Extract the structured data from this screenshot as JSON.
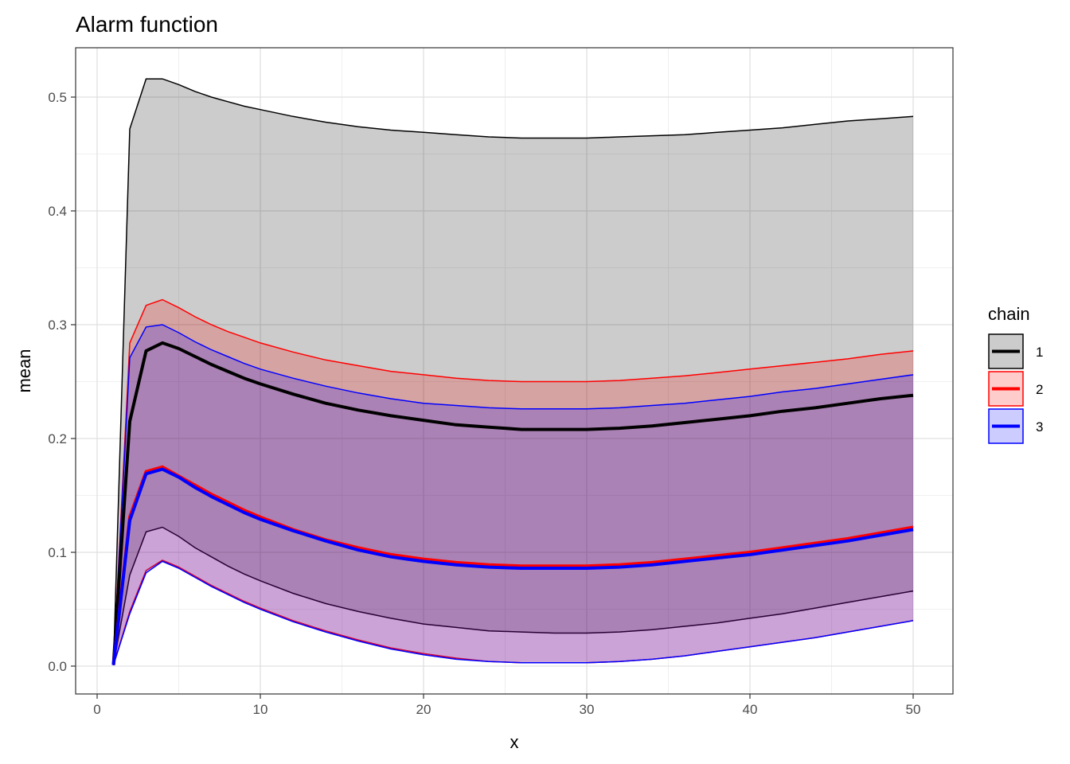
{
  "chart_data": {
    "type": "area",
    "title": "Alarm function",
    "xlabel": "x",
    "ylabel": "mean",
    "xlim": [
      0,
      50
    ],
    "ylim": [
      0,
      0.5
    ],
    "x_ticks": [
      0,
      10,
      20,
      30,
      40,
      50
    ],
    "y_ticks": [
      0.0,
      0.1,
      0.2,
      0.3,
      0.4,
      0.5
    ],
    "x_tick_labels": [
      "0",
      "10",
      "20",
      "30",
      "40",
      "50"
    ],
    "y_tick_labels": [
      "0.0",
      "0.1",
      "0.2",
      "0.3",
      "0.4",
      "0.5"
    ],
    "grid": true,
    "legend": {
      "title": "chain",
      "position": "right"
    },
    "x": [
      1,
      2,
      3,
      4,
      5,
      6,
      7,
      8,
      9,
      10,
      12,
      14,
      16,
      18,
      20,
      22,
      24,
      26,
      28,
      30,
      32,
      34,
      36,
      38,
      40,
      42,
      44,
      46,
      48,
      50
    ],
    "series": [
      {
        "name": "1",
        "color": "#000000",
        "fill": "#000000",
        "fill_opacity": 0.2,
        "mean": [
          0.001,
          0.215,
          0.277,
          0.284,
          0.279,
          0.272,
          0.265,
          0.259,
          0.253,
          0.248,
          0.239,
          0.231,
          0.225,
          0.22,
          0.216,
          0.212,
          0.21,
          0.208,
          0.208,
          0.208,
          0.209,
          0.211,
          0.214,
          0.217,
          0.22,
          0.224,
          0.227,
          0.231,
          0.235,
          0.238
        ],
        "lower": [
          0.001,
          0.08,
          0.118,
          0.122,
          0.114,
          0.104,
          0.096,
          0.088,
          0.081,
          0.075,
          0.064,
          0.055,
          0.048,
          0.042,
          0.037,
          0.034,
          0.031,
          0.03,
          0.029,
          0.029,
          0.03,
          0.032,
          0.035,
          0.038,
          0.042,
          0.046,
          0.051,
          0.056,
          0.061,
          0.066
        ],
        "upper": [
          0.001,
          0.472,
          0.516,
          0.516,
          0.511,
          0.505,
          0.5,
          0.496,
          0.492,
          0.489,
          0.483,
          0.478,
          0.474,
          0.471,
          0.469,
          0.467,
          0.465,
          0.464,
          0.464,
          0.464,
          0.465,
          0.466,
          0.467,
          0.469,
          0.471,
          0.473,
          0.476,
          0.479,
          0.481,
          0.483
        ]
      },
      {
        "name": "2",
        "color": "#ff0000",
        "fill": "#ff0000",
        "fill_opacity": 0.2,
        "mean": [
          0.001,
          0.131,
          0.171,
          0.175,
          0.167,
          0.159,
          0.151,
          0.144,
          0.137,
          0.131,
          0.12,
          0.111,
          0.104,
          0.098,
          0.094,
          0.091,
          0.089,
          0.088,
          0.088,
          0.088,
          0.089,
          0.091,
          0.094,
          0.097,
          0.1,
          0.104,
          0.108,
          0.112,
          0.117,
          0.122
        ],
        "lower": [
          0.001,
          0.048,
          0.084,
          0.093,
          0.087,
          0.079,
          0.071,
          0.064,
          0.057,
          0.051,
          0.04,
          0.031,
          0.023,
          0.016,
          0.011,
          0.007,
          0.004,
          0.003,
          0.003,
          0.003,
          0.004,
          0.006,
          0.009,
          0.013,
          0.017,
          0.021,
          0.025,
          0.03,
          0.035,
          0.04
        ],
        "upper": [
          0.001,
          0.284,
          0.317,
          0.322,
          0.315,
          0.307,
          0.3,
          0.294,
          0.289,
          0.284,
          0.276,
          0.269,
          0.264,
          0.259,
          0.256,
          0.253,
          0.251,
          0.25,
          0.25,
          0.25,
          0.251,
          0.253,
          0.255,
          0.258,
          0.261,
          0.264,
          0.267,
          0.27,
          0.274,
          0.277
        ]
      },
      {
        "name": "3",
        "color": "#0000ff",
        "fill": "#0000ff",
        "fill_opacity": 0.2,
        "mean": [
          0.001,
          0.128,
          0.169,
          0.173,
          0.166,
          0.157,
          0.149,
          0.142,
          0.135,
          0.129,
          0.119,
          0.11,
          0.102,
          0.096,
          0.092,
          0.089,
          0.087,
          0.086,
          0.086,
          0.086,
          0.087,
          0.089,
          0.092,
          0.095,
          0.098,
          0.102,
          0.106,
          0.11,
          0.115,
          0.12
        ],
        "lower": [
          0.001,
          0.046,
          0.082,
          0.092,
          0.086,
          0.078,
          0.07,
          0.063,
          0.056,
          0.05,
          0.039,
          0.03,
          0.022,
          0.015,
          0.01,
          0.006,
          0.004,
          0.003,
          0.003,
          0.003,
          0.004,
          0.006,
          0.009,
          0.013,
          0.017,
          0.021,
          0.025,
          0.03,
          0.035,
          0.04
        ],
        "upper": [
          0.001,
          0.271,
          0.298,
          0.3,
          0.293,
          0.285,
          0.278,
          0.272,
          0.266,
          0.261,
          0.253,
          0.246,
          0.24,
          0.235,
          0.231,
          0.229,
          0.227,
          0.226,
          0.226,
          0.226,
          0.227,
          0.229,
          0.231,
          0.234,
          0.237,
          0.241,
          0.244,
          0.248,
          0.252,
          0.256
        ]
      }
    ]
  }
}
